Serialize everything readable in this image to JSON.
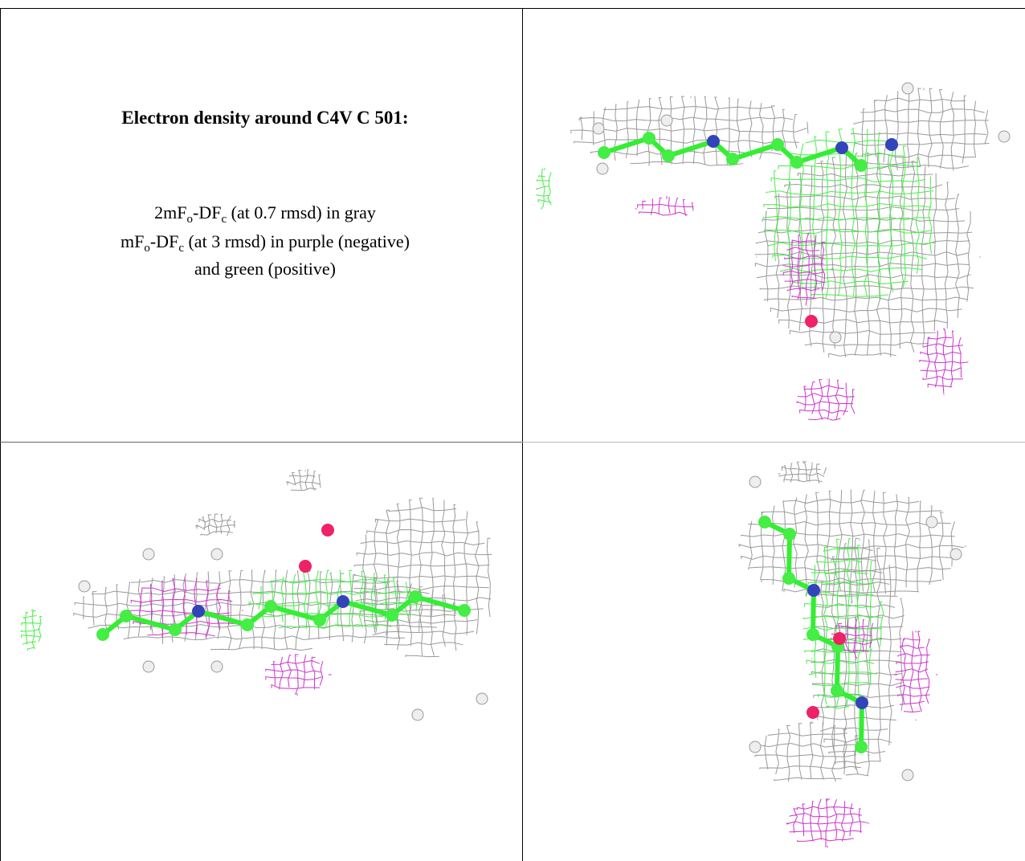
{
  "caption": {
    "title": "Electron density around C4V C 501:",
    "lines": [
      [
        {
          "text": "2mF"
        },
        {
          "sub": "o"
        },
        {
          "text": "-DF"
        },
        {
          "sub": "c"
        },
        {
          "text": " (at 0.7 rmsd) in gray"
        }
      ],
      [
        {
          "text": "mF"
        },
        {
          "sub": "o"
        },
        {
          "text": "-DF"
        },
        {
          "sub": "c"
        },
        {
          "text": " (at 3 rmsd) in purple (negative)"
        }
      ],
      [
        {
          "text": "and green (positive)"
        }
      ]
    ]
  }
}
